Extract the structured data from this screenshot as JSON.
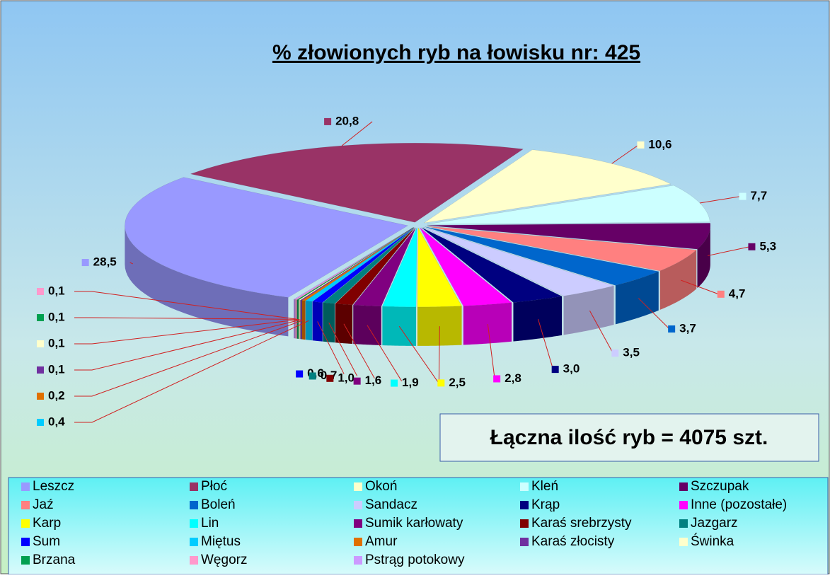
{
  "chart_data": {
    "type": "pie3d",
    "title": "% złowionych ryb na łowisku nr: 425",
    "annotation": "Łączna ilość ryb = 4075 szt.",
    "categories": [
      "Leszcz",
      "Płoć",
      "Okoń",
      "Kleń",
      "Szczupak",
      "Jaź",
      "Boleń",
      "Sandacz",
      "Krąp",
      "Inne (pozostałe)",
      "Karp",
      "Lin",
      "Sumik karłowaty",
      "Karaś srebrzysty",
      "Jazgarz",
      "Sum",
      "Miętus",
      "Amur",
      "Karaś złocisty",
      "Świnka",
      "Brzana",
      "Węgorz",
      "Pstrąg potokowy"
    ],
    "values": [
      28.5,
      20.8,
      10.6,
      7.7,
      5.3,
      4.7,
      3.7,
      3.5,
      3.0,
      2.8,
      2.5,
      1.9,
      1.6,
      1.0,
      0.7,
      0.6,
      0.4,
      0.2,
      0.1,
      0.1,
      0.1,
      0.1,
      0.1
    ],
    "value_labels": [
      "28,5",
      "20,8",
      "10,6",
      "7,7",
      "5,3",
      "4,7",
      "3,7",
      "3,5",
      "3,0",
      "2,8",
      "2,5",
      "1,9",
      "1,6",
      "1,0",
      "0,7",
      "0,6",
      "0,4",
      "0,2",
      "0,1",
      "0,1",
      "0,1",
      "0,1",
      null
    ],
    "colors": [
      "#9999ff",
      "#993366",
      "#ffffcc",
      "#ccffff",
      "#660066",
      "#ff8080",
      "#0066cc",
      "#ccccff",
      "#000080",
      "#ff00ff",
      "#ffff00",
      "#00ffff",
      "#800080",
      "#800000",
      "#008080",
      "#0000ff",
      "#00ccff",
      "#e07000",
      "#7030a0",
      "#ffffcc",
      "#00a050",
      "#ff99cc",
      "#cc99ff"
    ],
    "legend": "bottom"
  }
}
